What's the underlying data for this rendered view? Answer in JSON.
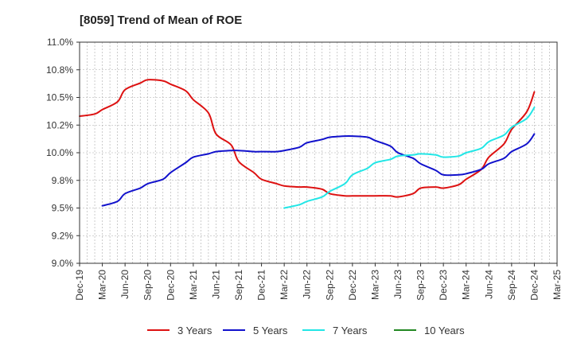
{
  "chart_data": {
    "type": "line",
    "title": "[8059]  Trend of Mean of ROE",
    "xlabel": "",
    "ylabel": "",
    "x_ticks": [
      "Dec-19",
      "Mar-20",
      "Jun-20",
      "Sep-20",
      "Dec-20",
      "Mar-21",
      "Jun-21",
      "Sep-21",
      "Dec-21",
      "Mar-22",
      "Jun-22",
      "Sep-22",
      "Dec-22",
      "Mar-23",
      "Jun-23",
      "Sep-23",
      "Dec-23",
      "Mar-24",
      "Jun-24",
      "Sep-24",
      "Dec-24",
      "Mar-25"
    ],
    "y_ticks": [
      "9.0%",
      "9.2%",
      "9.5%",
      "9.8%",
      "10.0%",
      "10.2%",
      "10.5%",
      "10.8%",
      "11.0%"
    ],
    "y_tick_values": [
      9.0,
      9.25,
      9.5,
      9.75,
      10.0,
      10.25,
      10.5,
      10.75,
      11.0
    ],
    "ylim": [
      9.0,
      11.0
    ],
    "grid": true,
    "legend_position": "bottom",
    "series": [
      {
        "name": "3 Years",
        "color": "#dd1111",
        "x": [
          "Dec-19",
          "Feb-20",
          "Mar-20",
          "May-20",
          "Jun-20",
          "Aug-20",
          "Sep-20",
          "Nov-20",
          "Dec-20",
          "Feb-21",
          "Mar-21",
          "May-21",
          "Jun-21",
          "Aug-21",
          "Sep-21",
          "Nov-21",
          "Dec-21",
          "Feb-22",
          "Mar-22",
          "May-22",
          "Jun-22",
          "Aug-22",
          "Sep-22",
          "Nov-22",
          "Dec-22",
          "Feb-23",
          "Mar-23",
          "May-23",
          "Jun-23",
          "Aug-23",
          "Sep-23",
          "Nov-23",
          "Dec-23",
          "Feb-24",
          "Mar-24",
          "May-24",
          "Jun-24",
          "Aug-24",
          "Sep-24",
          "Nov-24",
          "Dec-24"
        ],
        "y": [
          10.33,
          10.35,
          10.39,
          10.46,
          10.57,
          10.63,
          10.66,
          10.65,
          10.62,
          10.56,
          10.48,
          10.36,
          10.17,
          10.07,
          9.92,
          9.82,
          9.76,
          9.72,
          9.7,
          9.69,
          9.69,
          9.67,
          9.63,
          9.61,
          9.61,
          9.61,
          9.61,
          9.61,
          9.6,
          9.63,
          9.68,
          9.69,
          9.68,
          9.71,
          9.76,
          9.85,
          9.96,
          10.08,
          10.21,
          10.37,
          10.55
        ]
      },
      {
        "name": "5 Years",
        "color": "#1111cc",
        "x": [
          "Mar-20",
          "May-20",
          "Jun-20",
          "Aug-20",
          "Sep-20",
          "Nov-20",
          "Dec-20",
          "Feb-21",
          "Mar-21",
          "May-21",
          "Jun-21",
          "Aug-21",
          "Sep-21",
          "Nov-21",
          "Dec-21",
          "Feb-22",
          "Mar-22",
          "May-22",
          "Jun-22",
          "Aug-22",
          "Sep-22",
          "Nov-22",
          "Dec-22",
          "Feb-23",
          "Mar-23",
          "May-23",
          "Jun-23",
          "Aug-23",
          "Sep-23",
          "Nov-23",
          "Dec-23",
          "Feb-24",
          "Mar-24",
          "May-24",
          "Jun-24",
          "Aug-24",
          "Sep-24",
          "Nov-24",
          "Dec-24"
        ],
        "y": [
          9.52,
          9.56,
          9.63,
          9.68,
          9.72,
          9.76,
          9.82,
          9.91,
          9.96,
          9.99,
          10.01,
          10.02,
          10.02,
          10.01,
          10.01,
          10.01,
          10.02,
          10.05,
          10.09,
          10.12,
          10.14,
          10.15,
          10.15,
          10.14,
          10.11,
          10.06,
          10.0,
          9.95,
          9.9,
          9.84,
          9.8,
          9.8,
          9.81,
          9.85,
          9.9,
          9.95,
          10.01,
          10.08,
          10.17
        ]
      },
      {
        "name": "7 Years",
        "color": "#22e6e6",
        "x": [
          "Mar-22",
          "May-22",
          "Jun-22",
          "Aug-22",
          "Sep-22",
          "Nov-22",
          "Dec-22",
          "Feb-23",
          "Mar-23",
          "May-23",
          "Jun-23",
          "Aug-23",
          "Sep-23",
          "Nov-23",
          "Dec-23",
          "Feb-24",
          "Mar-24",
          "May-24",
          "Jun-24",
          "Aug-24",
          "Sep-24",
          "Nov-24",
          "Dec-24"
        ],
        "y": [
          9.5,
          9.53,
          9.56,
          9.6,
          9.65,
          9.72,
          9.8,
          9.86,
          9.91,
          9.94,
          9.97,
          9.98,
          9.99,
          9.98,
          9.96,
          9.97,
          10.0,
          10.04,
          10.1,
          10.16,
          10.23,
          10.31,
          10.41
        ]
      },
      {
        "name": "10 Years",
        "color": "#228822",
        "x": [],
        "y": []
      }
    ]
  }
}
